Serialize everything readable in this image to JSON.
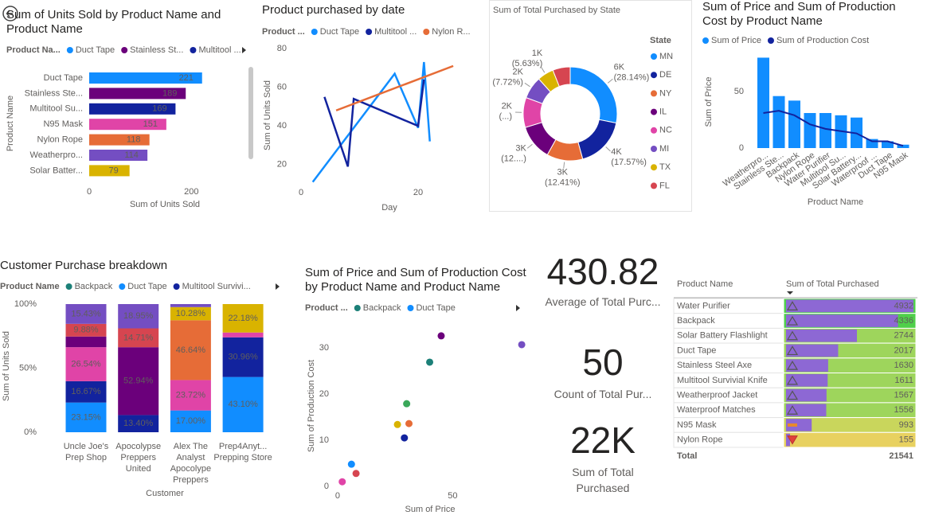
{
  "chart_data": [
    {
      "type": "hbar",
      "title": "Sum of Units Sold by Product Name and Product Name",
      "legend_title": "Product Na...",
      "legend": [
        {
          "name": "Duct Tape",
          "color": "#118dff"
        },
        {
          "name": "Stainless St...",
          "color": "#6b007b"
        },
        {
          "name": "Multitool ...",
          "color": "#12239e"
        }
      ],
      "categories": [
        "Duct Tape",
        "Stainless Ste...",
        "Multitool Su...",
        "N95 Mask",
        "Nylon Rope",
        "Weatherpro...",
        "Solar Batter..."
      ],
      "values": [
        221,
        189,
        169,
        151,
        118,
        114,
        79
      ],
      "colors": [
        "#118dff",
        "#6b007b",
        "#12239e",
        "#e044a7",
        "#e66c37",
        "#744ec2",
        "#d9b300"
      ],
      "xlabel": "Sum of Units Sold",
      "ylabel": "Product Name",
      "xlim": [
        0,
        290
      ],
      "xticks": [
        0,
        200
      ]
    },
    {
      "type": "line",
      "title": "Product purchased by date",
      "legend_title": "Product ...",
      "series": [
        {
          "name": "Duct Tape",
          "color": "#118dff",
          "x": [
            2,
            16,
            20,
            21,
            22
          ],
          "values": [
            11,
            67,
            39,
            73,
            32
          ]
        },
        {
          "name": "Multitool ...",
          "color": "#12239e",
          "x": [
            4,
            8,
            9,
            20,
            21
          ],
          "values": [
            55,
            19,
            54,
            40,
            64
          ]
        },
        {
          "name": "Nylon R...",
          "color": "#e66c37",
          "x": [
            6,
            26
          ],
          "values": [
            48,
            71
          ]
        }
      ],
      "xlabel": "Day",
      "ylabel": "Sum of Units Sold",
      "xlim": [
        0,
        30
      ],
      "xticks": [
        0,
        20
      ],
      "ylim": [
        5,
        85
      ],
      "yticks": [
        20,
        40,
        60,
        80
      ]
    },
    {
      "type": "donut",
      "title": "Sum of Total Purchased by State",
      "legend_title": "State",
      "categories": [
        "MN",
        "DE",
        "NY",
        "IL",
        "NC",
        "MI",
        "TX",
        "FL"
      ],
      "values": [
        28.14,
        17.57,
        12.41,
        12.2,
        10.3,
        7.72,
        5.63,
        6.03
      ],
      "value_labels": [
        [
          "6K",
          "(28.14%)"
        ],
        [
          "4K",
          "(17.57%)"
        ],
        [
          "3K",
          "(12.41%)"
        ],
        [
          "3K",
          "(12....)"
        ],
        [
          "2K",
          "(...)"
        ],
        [
          "2K",
          "(7.72%)"
        ],
        [
          "1K",
          "(5.63%)"
        ],
        null
      ],
      "colors": [
        "#118dff",
        "#12239e",
        "#e66c37",
        "#6b007b",
        "#e044a7",
        "#744ec2",
        "#d9b300",
        "#d64550"
      ]
    },
    {
      "type": "combo",
      "title": "Sum of Price and Sum of Production Cost by Product Name",
      "categories": [
        "Weatherpro...",
        "Stainless Ste...",
        "Backpack",
        "Nylon Rope",
        "Water Purifier",
        "Multitool Su...",
        "Solar Battery...",
        "Waterproof ...",
        "Duct Tape",
        "N95 Mask"
      ],
      "series": [
        {
          "name": "Sum of Price",
          "color": "#118dff",
          "kind": "bar",
          "values": [
            80,
            46,
            42,
            31,
            31,
            29,
            27,
            8,
            6,
            3
          ]
        },
        {
          "name": "Sum of Production Cost",
          "color": "#12239e",
          "kind": "line",
          "values": [
            31,
            33,
            29,
            21,
            17,
            15,
            13,
            6,
            6,
            2
          ]
        }
      ],
      "xlabel": "Product Name",
      "ylabel": "Sum of Price",
      "ylim": [
        0,
        87
      ],
      "yticks": [
        0,
        50
      ]
    },
    {
      "type": "stacked100",
      "title": "Customer Purchase breakdown",
      "legend_title": "Product Name",
      "categories": [
        "Uncle Joe's Prep Shop",
        "Apocolypse Preppers United",
        "Alex The Analyst Apocolype Preppers",
        "Prep4Anyt... Prepping Store"
      ],
      "series": [
        {
          "name": "Backpack",
          "color": "#1c8078",
          "values": [
            null,
            null,
            null,
            null
          ]
        },
        {
          "name": "Duct Tape",
          "color": "#118dff",
          "values": [
            23.15,
            null,
            17.0,
            43.1
          ],
          "value_labels": [
            "23.15%",
            null,
            "17.00%",
            "43.10%"
          ]
        },
        {
          "name": "Multitool Survivi...",
          "color": "#12239e",
          "values": [
            16.67,
            13.4,
            null,
            30.96
          ],
          "value_labels": [
            "16.67%",
            "13.40%",
            null,
            "30.96%"
          ]
        },
        {
          "color": "#e044a7",
          "values": [
            26.54,
            null,
            23.72,
            3.76
          ],
          "value_labels": [
            "26.54%",
            null,
            "23.72%",
            null
          ]
        },
        {
          "color": "#6b007b",
          "values": [
            8.33,
            52.94,
            null,
            null
          ],
          "value_labels": [
            null,
            "52.94%",
            null,
            null
          ]
        },
        {
          "color": "#e66c37",
          "values": [
            null,
            null,
            46.64,
            null
          ],
          "value_labels": [
            null,
            null,
            "46.64%",
            null
          ]
        },
        {
          "color": "#d64550",
          "values": [
            9.88,
            14.71,
            null,
            null
          ],
          "value_labels": [
            "9.88%",
            "14.71%",
            null,
            null
          ]
        },
        {
          "color": "#d9b300",
          "values": [
            null,
            null,
            10.28,
            22.18
          ],
          "value_labels": [
            null,
            null,
            "10.28%",
            "22.18%"
          ]
        },
        {
          "color": "#744ec2",
          "values": [
            15.43,
            18.95,
            2.36,
            null
          ],
          "value_labels": [
            "15.43%",
            "18.95%",
            null,
            null
          ]
        }
      ],
      "xlabel": "Customer",
      "ylabel": "Sum of Units Sold",
      "ylim": [
        0,
        100
      ],
      "yticks": [
        {
          "value": 0,
          "label": "0%"
        },
        {
          "value": 50,
          "label": "50%"
        },
        {
          "value": 100,
          "label": "100%"
        }
      ]
    },
    {
      "type": "scatter",
      "title": "Sum of Price and Sum of Production Cost by Product Name and Product Name",
      "legend_title": "Product ...",
      "legend": [
        {
          "name": "Backpack",
          "color": "#1c8078"
        },
        {
          "name": "Duct Tape",
          "color": "#118dff"
        }
      ],
      "x": [
        45,
        80,
        40,
        30,
        31,
        26,
        29,
        6,
        8,
        2
      ],
      "values": [
        32.6,
        30.7,
        26.9,
        17.9,
        13.6,
        13.4,
        10.5,
        4.8,
        2.8,
        1.0
      ],
      "colors": [
        "#6b007b",
        "#744ec2",
        "#1c8078",
        "#3aa85a",
        "#e66c37",
        "#d9b300",
        "#12239e",
        "#118dff",
        "#d64550",
        "#e044a7"
      ],
      "xlabel": "Sum of Price",
      "ylabel": "Sum of Production Cost",
      "xlim": [
        -3,
        81
      ],
      "xticks": [
        0,
        50
      ],
      "ylim": [
        -1.5,
        34
      ],
      "yticks": [
        0,
        10,
        20,
        30
      ]
    }
  ],
  "cards": [
    {
      "value": "430.82",
      "label": "Average of Total Purc..."
    },
    {
      "value": "50",
      "label": "Count of Total Pur..."
    },
    {
      "value": "22K",
      "label": "Sum of Total Purchased"
    }
  ],
  "table": {
    "columns": [
      "Product Name",
      "Sum of Total Purchased"
    ],
    "rows": [
      [
        "Water Purifier",
        4932
      ],
      [
        "Backpack",
        4336
      ],
      [
        "Solar Battery Flashlight",
        2744
      ],
      [
        "Duct Tape",
        2017
      ],
      [
        "Stainless Steel Axe",
        1630
      ],
      [
        "Multitool Survivial Knife",
        1611
      ],
      [
        "Weatherproof Jacket",
        1567
      ],
      [
        "Waterproof Matches",
        1556
      ],
      [
        "N95 Mask",
        993
      ],
      [
        "Nylon Rope",
        155
      ]
    ],
    "cell_colors": [
      "#4fcf4a",
      "#4fcf4a",
      "#9ed55c",
      "#9ed55c",
      "#9ed55c",
      "#9ed55c",
      "#9ed55c",
      "#9ed55c",
      "#c9d65c",
      "#e8d160"
    ],
    "icons": [
      "up",
      "up",
      "up",
      "up",
      "up",
      "up",
      "up",
      "up",
      "mid",
      "down"
    ],
    "bar_color": "#8d68d4",
    "total": [
      "Total",
      21541
    ]
  }
}
